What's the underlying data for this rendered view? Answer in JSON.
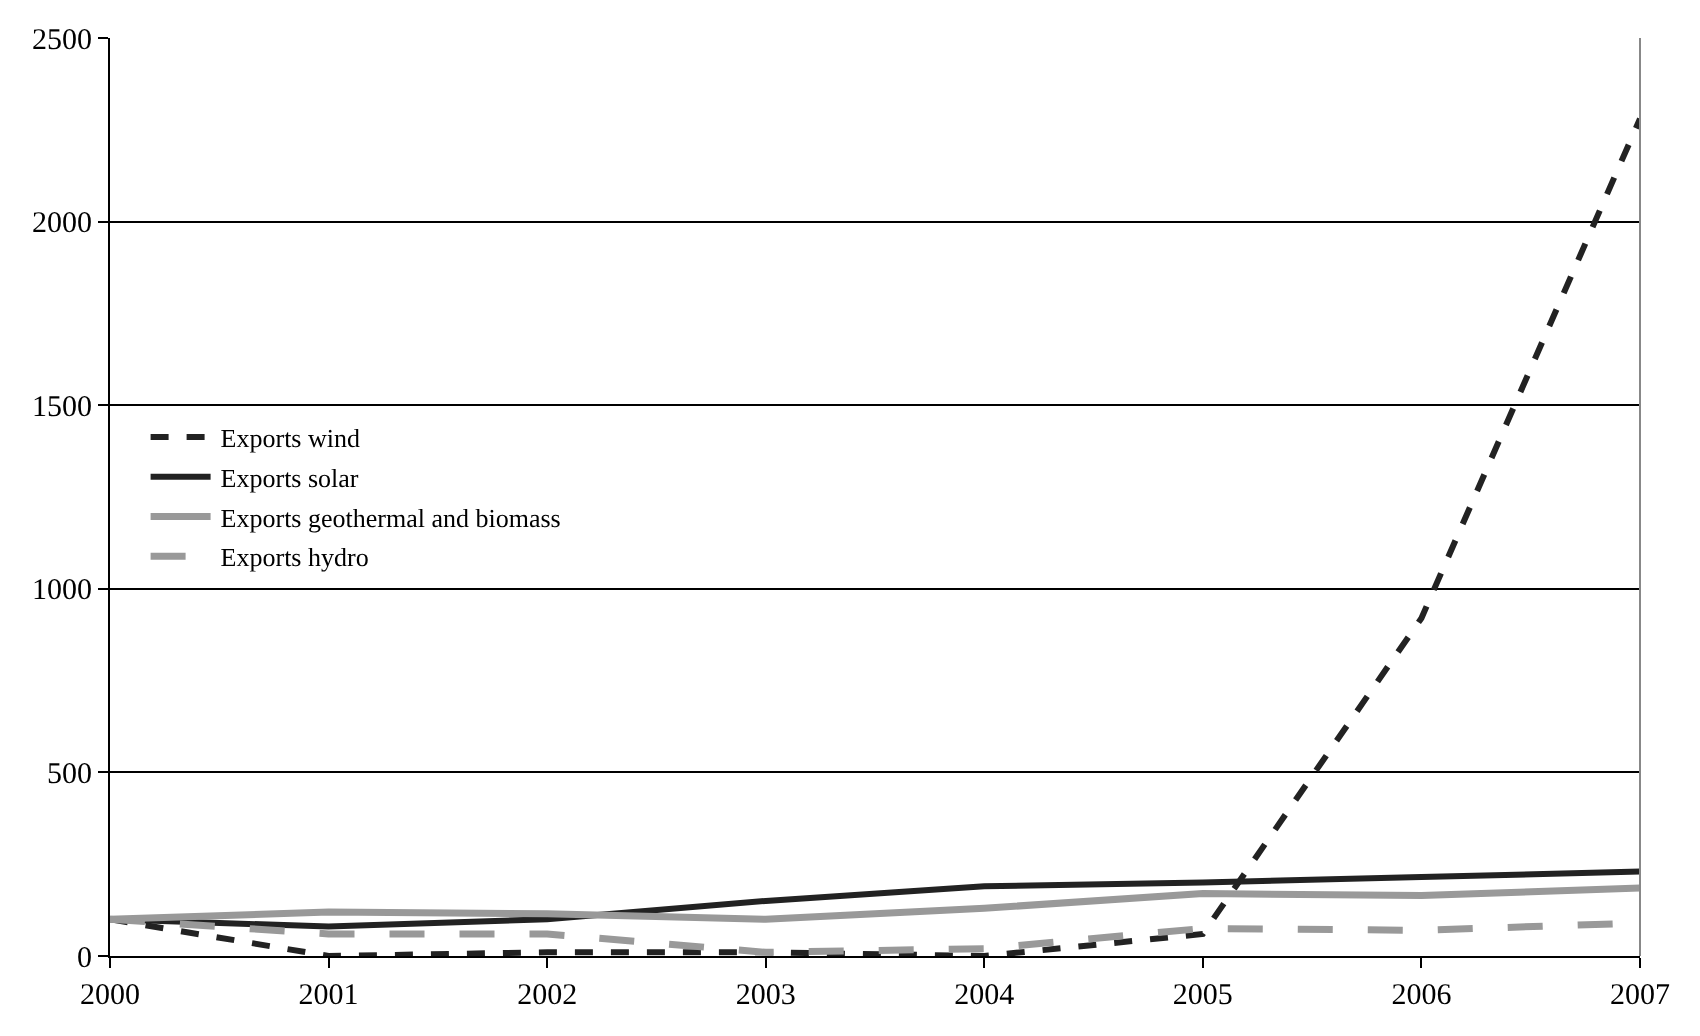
{
  "chart_data": {
    "type": "line",
    "x": [
      2000,
      2001,
      2002,
      2003,
      2004,
      2005,
      2006,
      2007
    ],
    "xlim": [
      2000,
      2007
    ],
    "xticks": [
      2000,
      2001,
      2002,
      2003,
      2004,
      2005,
      2006,
      2007
    ],
    "ylim": [
      0,
      2500
    ],
    "yticks": [
      0,
      500,
      1000,
      1500,
      2000,
      2500
    ],
    "grid": "y",
    "legend": "left",
    "marker": "none",
    "series": [
      {
        "name": "Exports wind",
        "color": "#222222",
        "line_style": "dashed",
        "values": [
          100,
          0,
          10,
          10,
          0,
          60,
          920,
          2280
        ]
      },
      {
        "name": "Exports solar",
        "color": "#222222",
        "line_style": "solid",
        "values": [
          100,
          80,
          100,
          150,
          190,
          200,
          215,
          230
        ]
      },
      {
        "name": "Exports geothermal and biomass",
        "color": "#999999",
        "line_style": "solid",
        "values": [
          100,
          120,
          115,
          100,
          130,
          170,
          165,
          185
        ]
      },
      {
        "name": "Exports hydro",
        "color": "#999999",
        "line_style": "longdash",
        "values": [
          100,
          60,
          60,
          10,
          20,
          75,
          70,
          90
        ]
      }
    ]
  }
}
